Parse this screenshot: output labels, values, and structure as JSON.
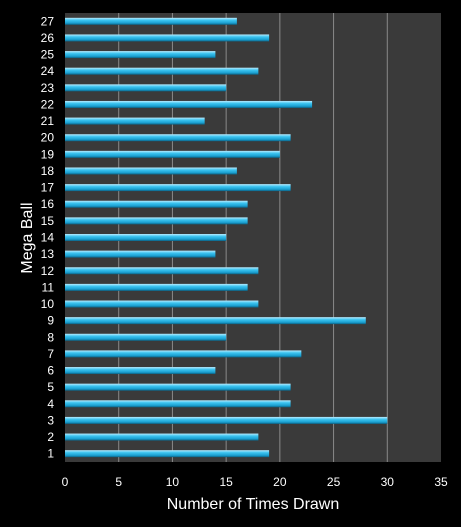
{
  "chart_data": {
    "type": "bar",
    "orientation": "horizontal",
    "categories": [
      "1",
      "2",
      "3",
      "4",
      "5",
      "6",
      "7",
      "8",
      "9",
      "10",
      "11",
      "12",
      "13",
      "14",
      "15",
      "16",
      "17",
      "18",
      "19",
      "20",
      "21",
      "22",
      "23",
      "24",
      "25",
      "26",
      "27"
    ],
    "values": [
      19,
      18,
      30,
      21,
      21,
      14,
      22,
      15,
      28,
      18,
      17,
      18,
      14,
      15,
      17,
      17,
      21,
      16,
      20,
      21,
      13,
      23,
      15,
      18,
      14,
      19,
      16
    ],
    "xlabel": "Number of Times Drawn",
    "ylabel": "Mega Ball",
    "xlim": [
      0,
      35
    ],
    "xticks": [
      "0",
      "5",
      "10",
      "15",
      "20",
      "25",
      "30",
      "35"
    ],
    "grid": true,
    "colors": {
      "bar": "#29b6e8",
      "plot_background": "#3a3a3a",
      "background": "#000000",
      "grid": "#8a8a8a",
      "text": "#ffffff"
    }
  }
}
